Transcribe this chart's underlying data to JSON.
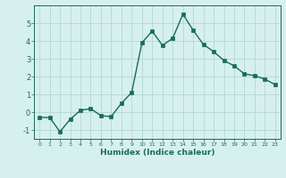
{
  "x": [
    0,
    1,
    2,
    3,
    4,
    5,
    6,
    7,
    8,
    9,
    10,
    11,
    12,
    13,
    14,
    15,
    16,
    17,
    18,
    19,
    20,
    21,
    22,
    23
  ],
  "y": [
    -0.3,
    -0.3,
    -1.1,
    -0.4,
    0.1,
    0.2,
    -0.2,
    -0.25,
    0.5,
    1.1,
    3.9,
    4.55,
    3.75,
    4.15,
    5.5,
    4.6,
    3.8,
    3.4,
    2.9,
    2.6,
    2.15,
    2.05,
    1.85,
    1.55
  ],
  "title": "",
  "xlabel": "Humidex (Indice chaleur)",
  "ylabel": "",
  "ylim": [
    -1.5,
    6.0
  ],
  "xlim": [
    -0.5,
    23.5
  ],
  "line_color": "#1a6b5a",
  "marker_color": "#1a6b5a",
  "bg_color": "#d6f0ef",
  "grid_color": "#b8dbd8",
  "tick_label_color": "#1a6b5a",
  "xlabel_color": "#1a6b5a",
  "yticks": [
    -1,
    0,
    1,
    2,
    3,
    4,
    5
  ],
  "xticks": [
    0,
    1,
    2,
    3,
    4,
    5,
    6,
    7,
    8,
    9,
    10,
    11,
    12,
    13,
    14,
    15,
    16,
    17,
    18,
    19,
    20,
    21,
    22,
    23
  ]
}
